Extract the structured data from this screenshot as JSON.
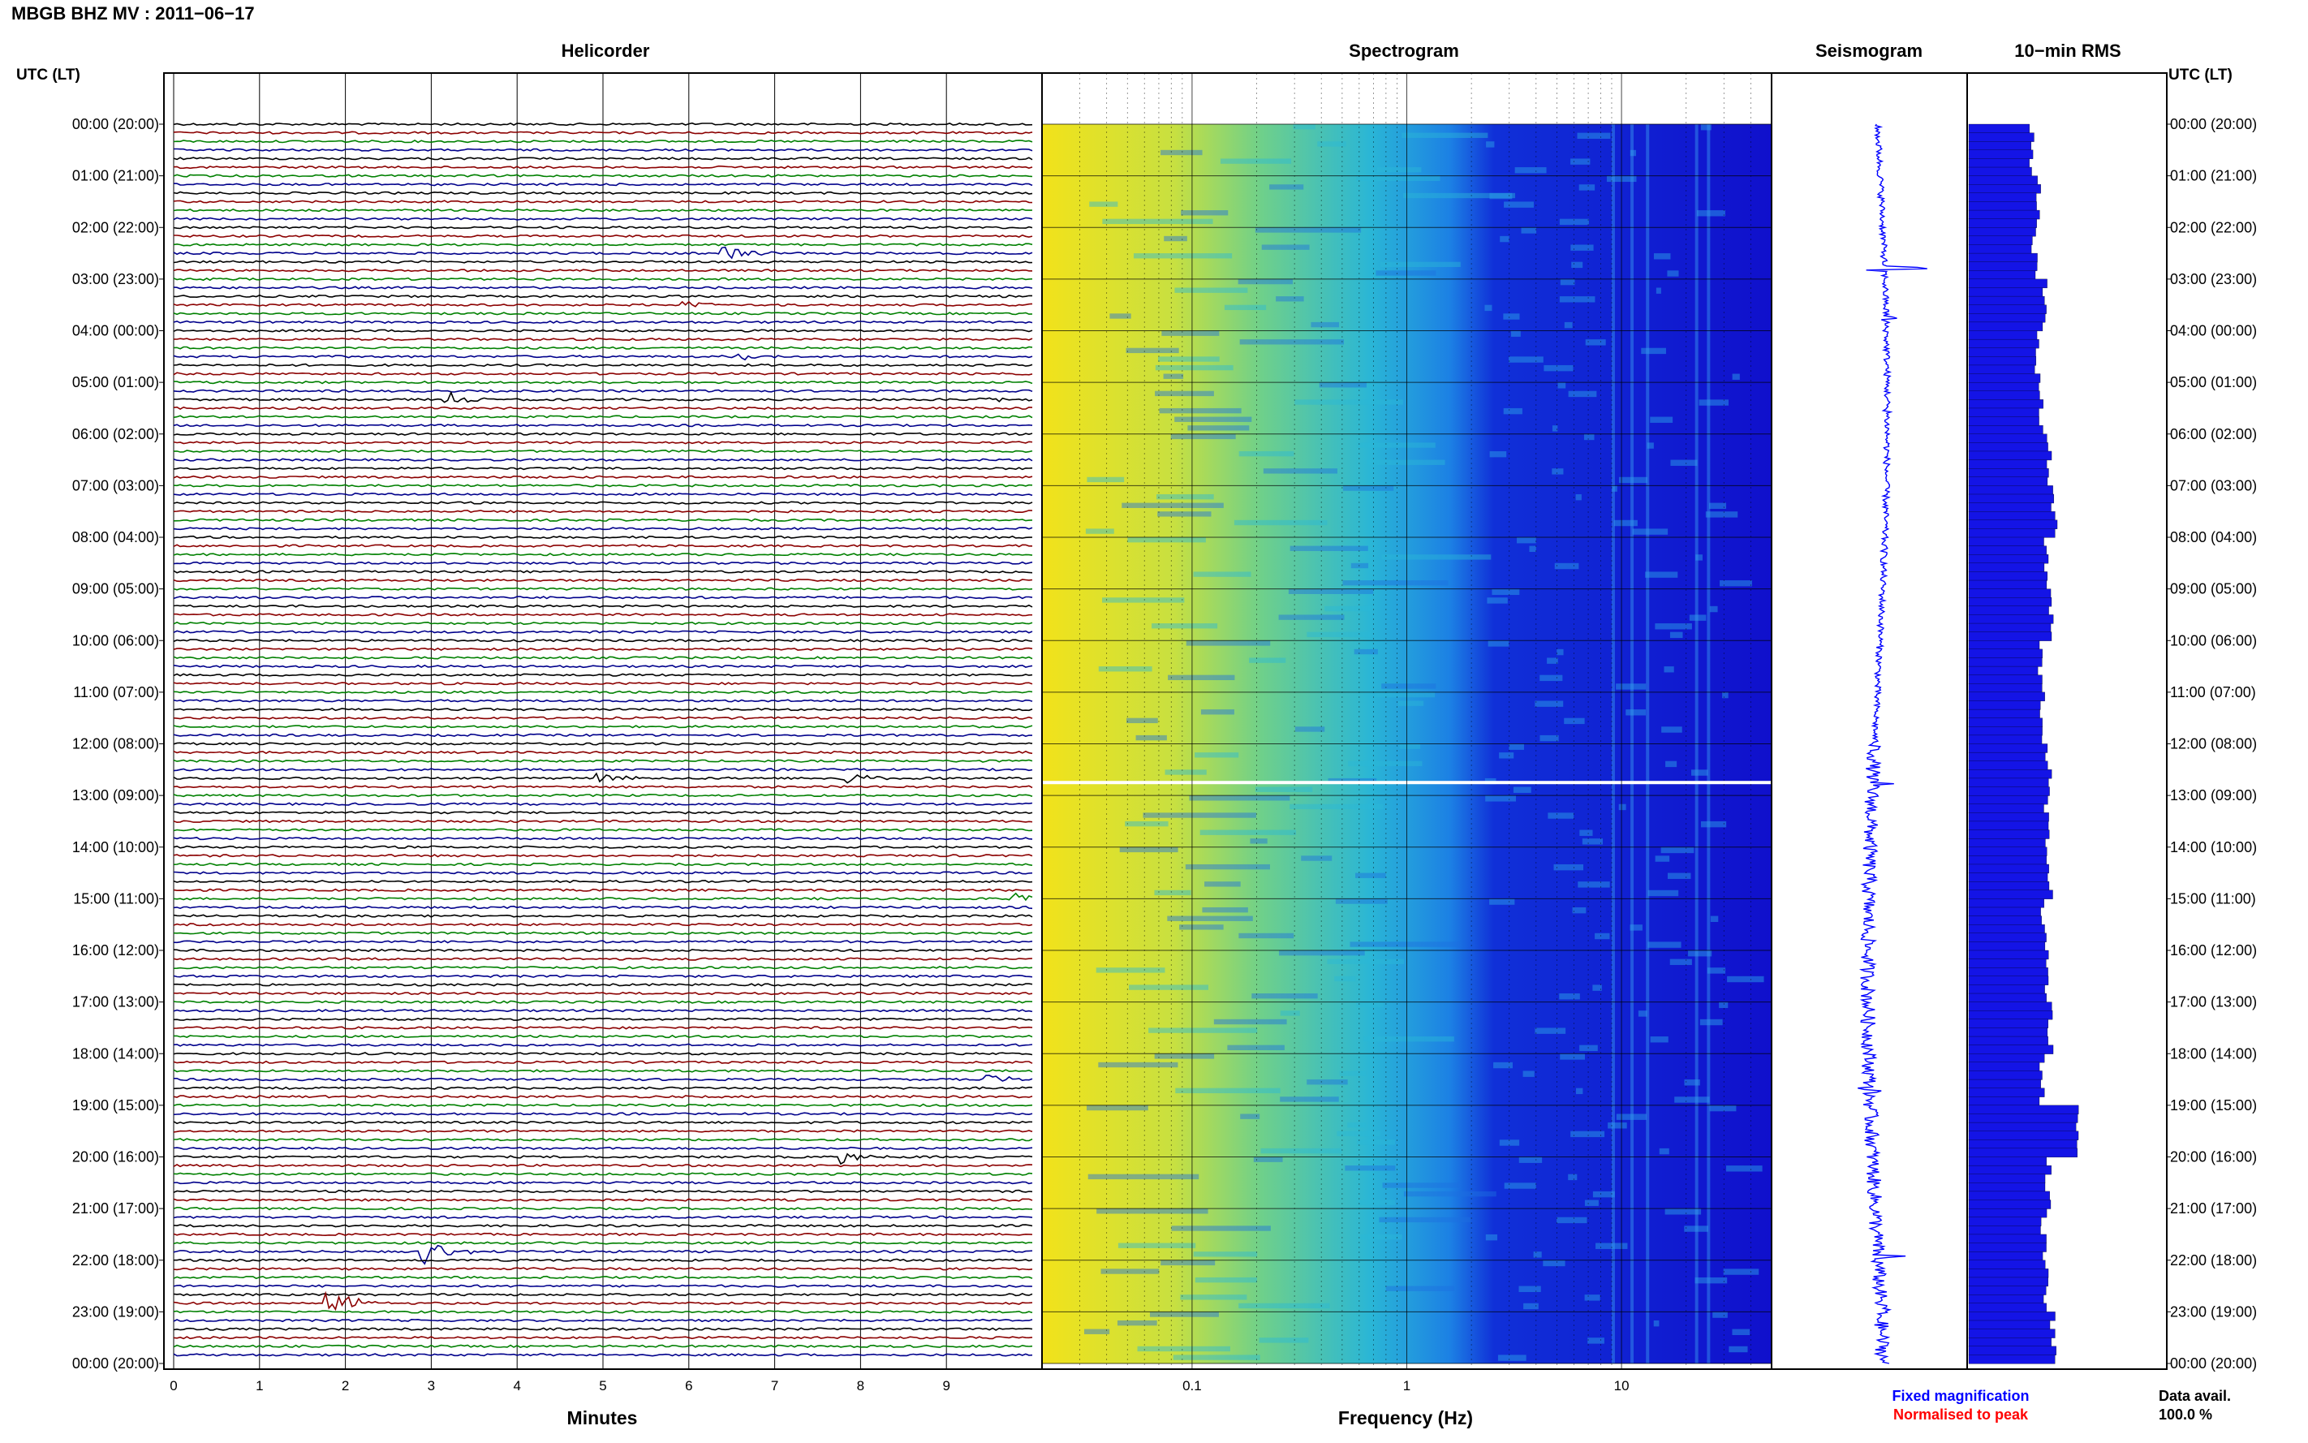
{
  "header": {
    "title": "MBGB BHZ MV : 2011−06−17",
    "utc_left": "UTC (LT)",
    "utc_right": "UTC (LT)"
  },
  "panels": {
    "helicorder": "Helicorder",
    "spectrogram": "Spectrogram",
    "seismogram": "Seismogram",
    "rms": "10−min RMS"
  },
  "axes": {
    "minutes_label": "Minutes",
    "frequency_label": "Frequency (Hz)"
  },
  "legend": {
    "fixed": "Fixed magnification",
    "normalised": "Normalised to peak",
    "fixed_color": "#0000ff",
    "normalised_color": "#ff0000"
  },
  "data_avail": {
    "label": "Data avail.",
    "value": "100.0 %"
  },
  "colors": {
    "trace_cycle": [
      "#000000",
      "#8b0000",
      "#008000",
      "#00008b"
    ],
    "spectro_low": "#f2e21a",
    "spectro_mid": "#16b4d4",
    "spectro_high": "#1010d8",
    "bar": "#1414e6"
  },
  "chart_data": [
    {
      "type": "line",
      "name": "helicorder",
      "xlabel": "Minutes",
      "x_ticks": [
        0,
        1,
        2,
        3,
        4,
        5,
        6,
        7,
        8,
        9
      ],
      "xlim": [
        0,
        10
      ],
      "rows": 144,
      "row_minutes": 10,
      "hour_labels": [
        "00:00 (20:00)",
        "01:00 (21:00)",
        "02:00 (22:00)",
        "03:00 (23:00)",
        "04:00 (00:00)",
        "05:00 (01:00)",
        "06:00 (02:00)",
        "07:00 (03:00)",
        "08:00 (04:00)",
        "09:00 (05:00)",
        "10:00 (06:00)",
        "11:00 (07:00)",
        "12:00 (08:00)",
        "13:00 (09:00)",
        "14:00 (10:00)",
        "15:00 (11:00)",
        "16:00 (12:00)",
        "17:00 (13:00)",
        "18:00 (14:00)",
        "19:00 (15:00)",
        "20:00 (16:00)",
        "21:00 (17:00)",
        "22:00 (18:00)",
        "23:00 (19:00)",
        "00:00 (20:00)"
      ],
      "events": [
        {
          "hour": 2.55,
          "minute": 6.4,
          "amp": 1.0
        },
        {
          "hour": 3.6,
          "minute": 5.9,
          "amp": 0.6
        },
        {
          "hour": 4.5,
          "minute": 6.6,
          "amp": 0.4
        },
        {
          "hour": 5.35,
          "minute": 3.2,
          "amp": 0.7
        },
        {
          "hour": 5.35,
          "minute": 9.4,
          "amp": 0.5
        },
        {
          "hour": 12.7,
          "minute": 4.9,
          "amp": 0.6
        },
        {
          "hour": 12.7,
          "minute": 7.8,
          "amp": 0.7
        },
        {
          "hour": 15.0,
          "minute": 9.8,
          "amp": 0.6
        },
        {
          "hour": 18.6,
          "minute": 9.5,
          "amp": 0.5
        },
        {
          "hour": 20.15,
          "minute": 7.8,
          "amp": 0.6
        },
        {
          "hour": 21.95,
          "minute": 2.9,
          "amp": 1.6
        },
        {
          "hour": 22.95,
          "minute": 1.8,
          "amp": 1.4
        }
      ]
    },
    {
      "type": "heatmap",
      "name": "spectrogram",
      "xlabel": "Frequency (Hz)",
      "x_scale": "log",
      "xlim": [
        0.02,
        50
      ],
      "x_tick_labels": [
        "0.1",
        "1",
        "10"
      ],
      "x_tick_values": [
        0.1,
        1,
        10
      ],
      "ylim_hours": [
        0,
        24
      ],
      "gap_hour": 12.75
    },
    {
      "type": "line",
      "name": "seismogram",
      "spikes": [
        {
          "hour": 2.8,
          "value": 0.55
        },
        {
          "hour": 3.75,
          "value": 0.25
        },
        {
          "hour": 5.55,
          "value": 0.35
        },
        {
          "hour": 12.8,
          "value": 0.25
        },
        {
          "hour": 18.7,
          "value": 0.25
        },
        {
          "hour": 21.95,
          "value": 0.75
        },
        {
          "hour": 22.95,
          "value": 0.95
        }
      ]
    },
    {
      "type": "bar",
      "name": "10-min RMS",
      "categories_hours": [
        0,
        24
      ],
      "values": [
        0.55,
        0.62,
        0.58,
        0.66,
        0.6,
        0.64,
        0.7,
        0.75,
        0.68,
        0.72,
        0.63,
        0.65,
        0.7,
        0.68,
        0.71,
        0.66,
        0.69,
        0.72,
        0.65,
        0.95,
        0.7,
        0.66,
        0.68,
        0.74
      ]
    }
  ]
}
